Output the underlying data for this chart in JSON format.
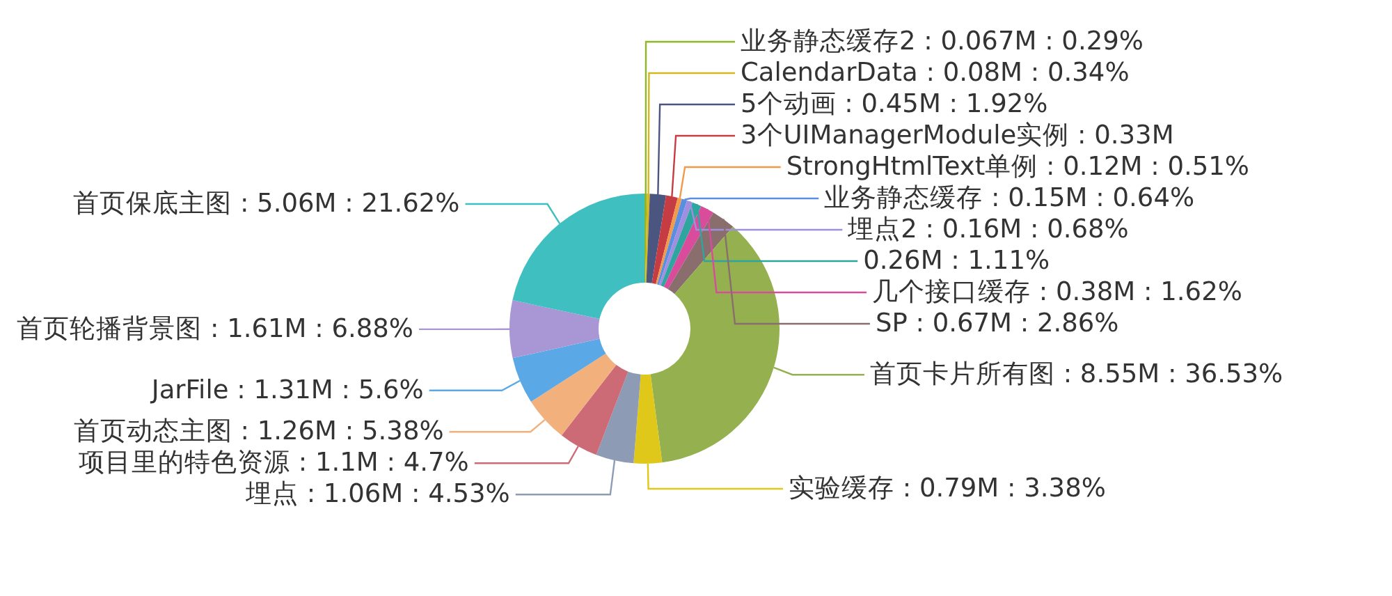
{
  "chart_data": {
    "type": "donut",
    "categories": [
      "业务静态缓存2",
      "CalendarData",
      "5个动画",
      "3个UIManagerModule实例 : 0.33M",
      "StrongHtmlText单例",
      "业务静态缓存",
      "埋点2",
      null,
      "几个接口缓存",
      "SP",
      "首页卡片所有图",
      "实验缓存",
      "埋点",
      "项目里的特色资源",
      "首页动态主图",
      "JarFile",
      "首页轮播背景图",
      "首页保底主图"
    ],
    "values": [
      0.29,
      0.34,
      1.92,
      1.41,
      0.51,
      0.64,
      0.68,
      1.11,
      1.62,
      2.86,
      36.53,
      3.38,
      4.53,
      4.7,
      5.38,
      5.6,
      6.88,
      21.62
    ],
    "value_labels": [
      "0.067M : 0.29%",
      "0.08M : 0.34%",
      "0.45M : 1.92%",
      null,
      "0.12M : 0.51%",
      "0.15M : 0.64%",
      "0.16M : 0.68%",
      "0.26M : 1.11%",
      "0.38M : 1.62%",
      "0.67M : 2.86%",
      "8.55M : 36.53%",
      "0.79M : 3.38%",
      "1.06M : 4.53%",
      "1.1M : 4.7%",
      "1.26M : 5.38%",
      "1.31M : 5.6%",
      "1.61M : 6.88%",
      "5.06M : 21.62%"
    ],
    "colors": [
      "#8db826",
      "#d4b820",
      "#4a5580",
      "#c63c43",
      "#f39a4a",
      "#5a8fe0",
      "#a08ee0",
      "#2ea59e",
      "#d94c9c",
      "#8a6d6d",
      "#95b04e",
      "#dfc81a",
      "#8e9bb5",
      "#cc6a76",
      "#f2b07c",
      "#5aa9e6",
      "#a897d4",
      "#3fbfbf"
    ]
  }
}
